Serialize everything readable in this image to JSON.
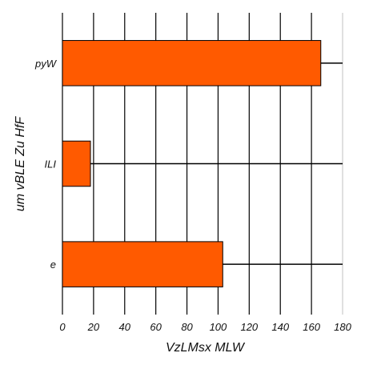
{
  "chart_data": {
    "type": "bar",
    "orientation": "horizontal",
    "categories": [
      "pyW",
      "ILI",
      "e"
    ],
    "values": [
      166,
      18,
      103
    ],
    "xlabel": "VzLMsx MLW",
    "ylabel": "um vBLE Zu HfF",
    "xlim": [
      0,
      180
    ],
    "xticks": [
      0,
      20,
      40,
      60,
      80,
      100,
      120,
      140,
      160,
      180
    ],
    "grid": true,
    "bar_color": "#ff5a00",
    "bar_edge_color": "#000000",
    "error_line_end": 180
  }
}
